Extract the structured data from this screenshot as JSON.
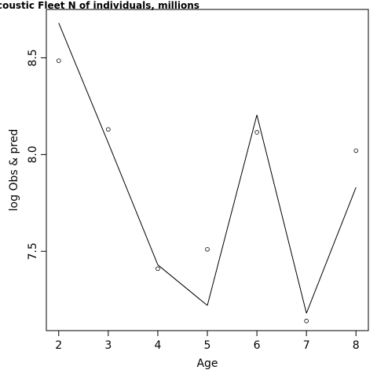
{
  "chart_data": {
    "type": "line",
    "title": "coustic Fleet   N of individuals, millions",
    "xlabel": "Age",
    "ylabel": "log Obs & pred",
    "x": [
      2,
      3,
      4,
      5,
      6,
      7,
      8
    ],
    "series": [
      {
        "style": "points",
        "values": [
          8.485,
          8.13,
          7.41,
          7.51,
          8.115,
          7.14,
          8.02
        ]
      },
      {
        "style": "line",
        "values": [
          8.68,
          8.06,
          7.43,
          7.22,
          8.205,
          7.18,
          7.83
        ]
      }
    ],
    "xticks": [
      "2",
      "3",
      "4",
      "5",
      "6",
      "7",
      "8"
    ],
    "yticks": [
      "7.5",
      "8.0",
      "8.5"
    ],
    "xlim": [
      1.75,
      8.25
    ],
    "ylim": [
      7.09,
      8.75
    ],
    "grid": false,
    "colors": {
      "line": "#000000",
      "points": "#000000",
      "frame": "#000000"
    }
  }
}
